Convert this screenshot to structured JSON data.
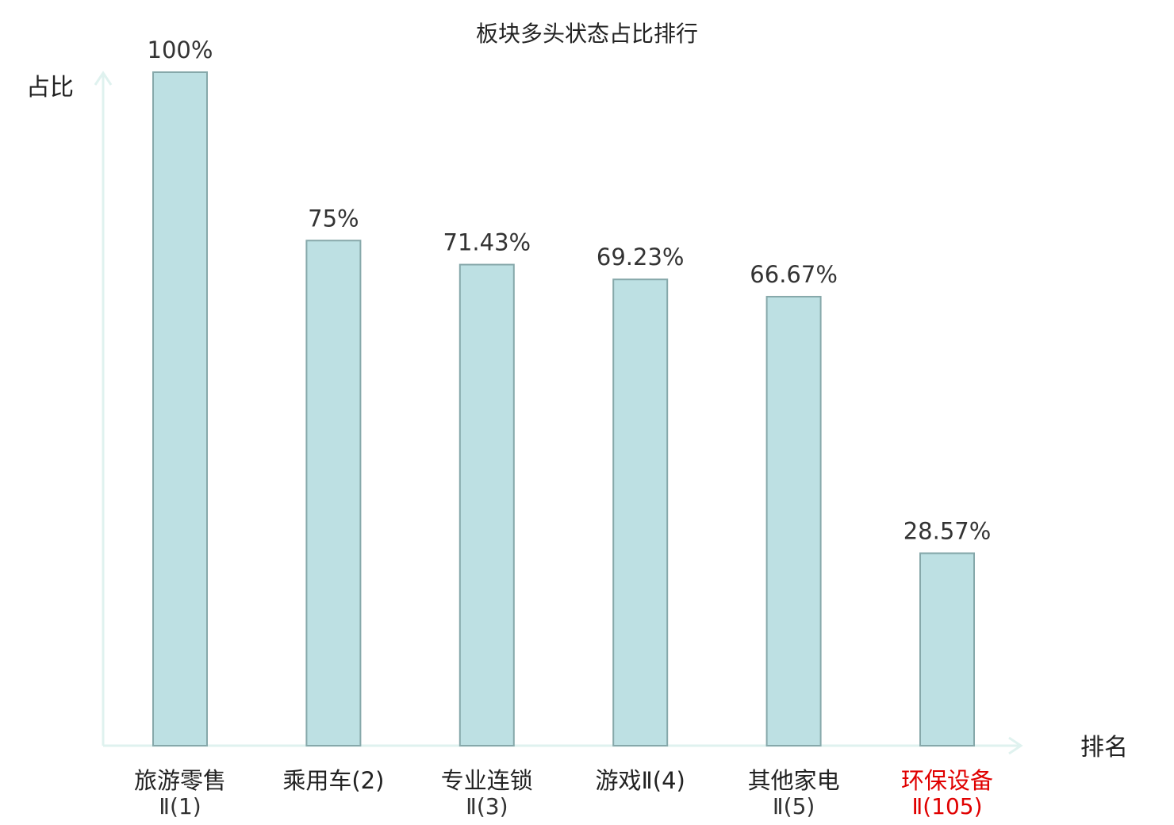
{
  "chart_data": {
    "type": "bar",
    "title": "板块多头状态占比排行",
    "ylabel": "占比",
    "xlabel": "排名",
    "ylim": [
      0,
      100
    ],
    "grid": false,
    "categories": [
      {
        "name": "旅游零售",
        "rank": "Ⅱ(1)",
        "highlight": false
      },
      {
        "name": "乘用车(2)",
        "rank": "",
        "highlight": false
      },
      {
        "name": "专业连锁",
        "rank": "Ⅱ(3)",
        "highlight": false
      },
      {
        "name": "游戏Ⅱ(4)",
        "rank": "",
        "highlight": false
      },
      {
        "name": "其他家电",
        "rank": "Ⅱ(5)",
        "highlight": false
      },
      {
        "name": "环保设备",
        "rank": "Ⅱ(105)",
        "highlight": true
      }
    ],
    "values": [
      100,
      75,
      71.43,
      69.23,
      66.67,
      28.57
    ],
    "value_labels": [
      "100%",
      "75%",
      "71.43%",
      "69.23%",
      "66.67%",
      "28.57%"
    ],
    "colors": {
      "bar_fill": "#bde0e3",
      "bar_stroke": "#86a8aa",
      "axis": "#dff2ef",
      "text": "#222222",
      "rank_text": "#333333",
      "highlight_text": "#e00000"
    }
  }
}
